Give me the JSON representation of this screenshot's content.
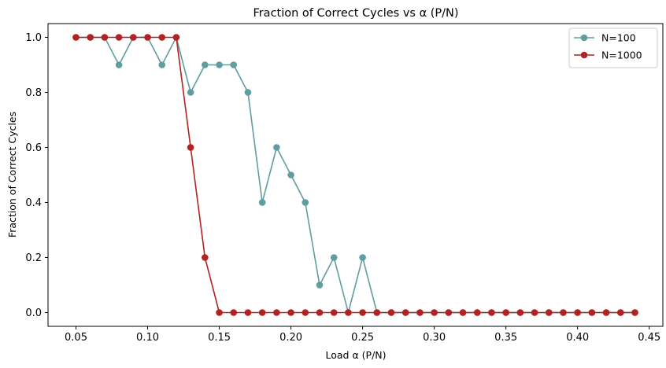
{
  "chart_data": {
    "type": "line",
    "title": "Fraction of Correct Cycles vs α (P/N)",
    "xlabel": "Load α (P/N)",
    "ylabel": "Fraction of Correct Cycles",
    "xlim": [
      0.0305,
      0.4595
    ],
    "ylim": [
      -0.05,
      1.05
    ],
    "grid": false,
    "legend_position": "top-right",
    "x_ticks": [
      0.05,
      0.1,
      0.15,
      0.2,
      0.25,
      0.3,
      0.35,
      0.4,
      0.45
    ],
    "x_tick_labels": [
      "0.05",
      "0.10",
      "0.15",
      "0.20",
      "0.25",
      "0.30",
      "0.35",
      "0.40",
      "0.45"
    ],
    "y_ticks": [
      0.0,
      0.2,
      0.4,
      0.6,
      0.8,
      1.0
    ],
    "y_tick_labels": [
      "0.0",
      "0.2",
      "0.4",
      "0.6",
      "0.8",
      "1.0"
    ],
    "x": [
      0.05,
      0.06,
      0.07,
      0.08,
      0.09,
      0.1,
      0.11,
      0.12,
      0.13,
      0.14,
      0.15,
      0.16,
      0.17,
      0.18,
      0.19,
      0.2,
      0.21,
      0.22,
      0.23,
      0.24,
      0.25,
      0.26,
      0.27,
      0.28,
      0.29,
      0.3,
      0.31,
      0.32,
      0.33,
      0.34,
      0.35,
      0.36,
      0.37,
      0.38,
      0.39,
      0.4,
      0.41,
      0.42,
      0.43,
      0.44
    ],
    "series": [
      {
        "name": "N=100",
        "color": "#5f9ea0",
        "marker": "circle",
        "values": [
          1.0,
          1.0,
          1.0,
          0.9,
          1.0,
          1.0,
          0.9,
          1.0,
          0.8,
          0.9,
          0.9,
          0.9,
          0.8,
          0.4,
          0.6,
          0.5,
          0.4,
          0.1,
          0.2,
          0.0,
          0.2,
          0.0,
          0.0,
          0.0,
          0.0,
          0.0,
          0.0,
          0.0,
          0.0,
          0.0,
          0.0,
          0.0,
          0.0,
          0.0,
          0.0,
          0.0,
          0.0,
          0.0,
          0.0,
          0.0
        ]
      },
      {
        "name": "N=1000",
        "color": "#b22222",
        "marker": "circle",
        "values": [
          1.0,
          1.0,
          1.0,
          1.0,
          1.0,
          1.0,
          1.0,
          1.0,
          0.6,
          0.2,
          0.0,
          0.0,
          0.0,
          0.0,
          0.0,
          0.0,
          0.0,
          0.0,
          0.0,
          0.0,
          0.0,
          0.0,
          0.0,
          0.0,
          0.0,
          0.0,
          0.0,
          0.0,
          0.0,
          0.0,
          0.0,
          0.0,
          0.0,
          0.0,
          0.0,
          0.0,
          0.0,
          0.0,
          0.0,
          0.0
        ]
      }
    ]
  }
}
